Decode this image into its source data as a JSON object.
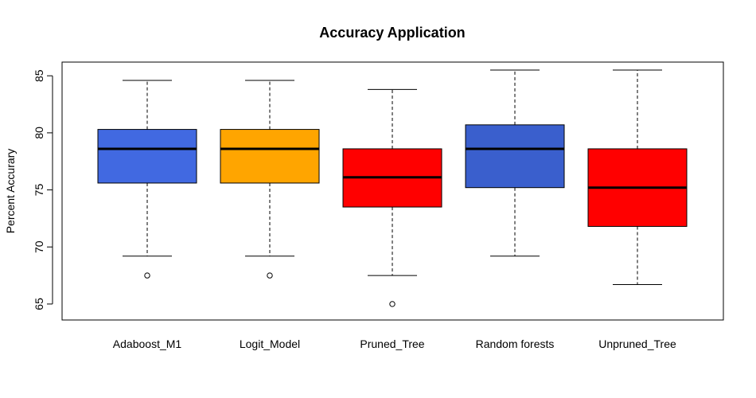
{
  "chart_data": {
    "type": "boxplot",
    "title": "Accuracy Application",
    "xlabel": "",
    "ylabel": "Percent Accurary",
    "ylim": [
      63.6,
      86.2
    ],
    "yticks": [
      65,
      70,
      75,
      80,
      85
    ],
    "ytick_labels": [
      "65",
      "70",
      "75",
      "80",
      "85"
    ],
    "grid": false,
    "categories": [
      "Adaboost_M1",
      "Logit_Model",
      "Pruned_Tree",
      "Random forests",
      "Unpruned_Tree"
    ],
    "boxes": [
      {
        "name": "Adaboost_M1",
        "color": "#4169E1",
        "whisker_low": 69.2,
        "q1": 75.6,
        "median": 78.6,
        "q3": 80.3,
        "whisker_high": 84.6,
        "outliers": [
          67.5
        ]
      },
      {
        "name": "Logit_Model",
        "color": "#FFA500",
        "whisker_low": 69.2,
        "q1": 75.6,
        "median": 78.6,
        "q3": 80.3,
        "whisker_high": 84.6,
        "outliers": [
          67.5
        ]
      },
      {
        "name": "Pruned_Tree",
        "color": "#FF0000",
        "whisker_low": 67.5,
        "q1": 73.5,
        "median": 76.1,
        "q3": 78.6,
        "whisker_high": 83.8,
        "outliers": [
          65.0
        ]
      },
      {
        "name": "Random forests",
        "color": "#3A5FCD",
        "whisker_low": 69.2,
        "q1": 75.2,
        "median": 78.6,
        "q3": 80.7,
        "whisker_high": 85.5,
        "outliers": []
      },
      {
        "name": "Unpruned_Tree",
        "color": "#FF0000",
        "whisker_low": 66.7,
        "q1": 71.8,
        "median": 75.2,
        "q3": 78.6,
        "whisker_high": 85.5,
        "outliers": []
      }
    ]
  }
}
